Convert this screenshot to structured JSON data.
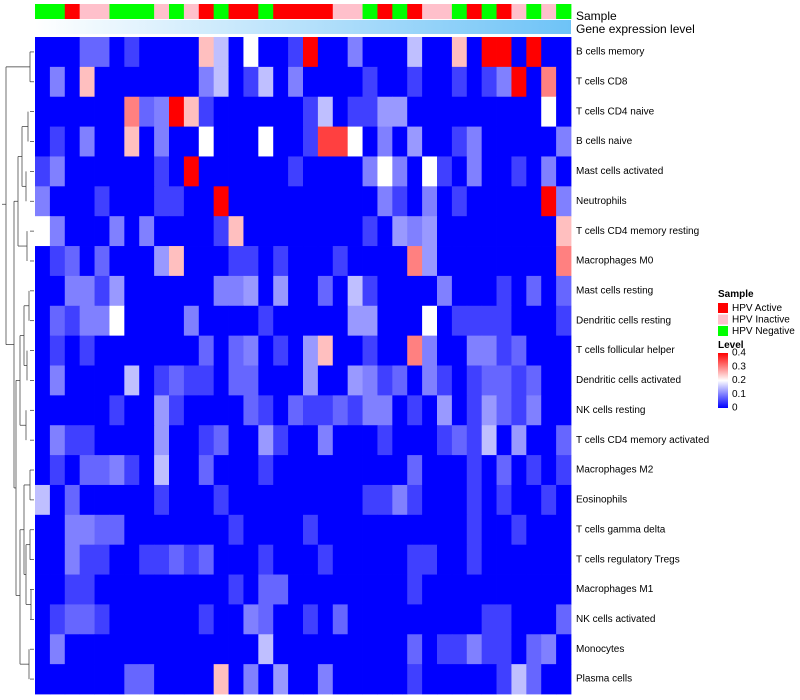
{
  "chart_data": {
    "type": "heatmap",
    "title": "",
    "annotation_tracks": [
      {
        "label": "Sample",
        "values": [
          "Negative",
          "Negative",
          "Active",
          "Inactive",
          "Inactive",
          "Negative",
          "Negative",
          "Negative",
          "Inactive",
          "Negative",
          "Inactive",
          "Active",
          "Negative",
          "Active",
          "Active",
          "Negative",
          "Active",
          "Active",
          "Active",
          "Active",
          "Inactive",
          "Inactive",
          "Negative",
          "Active",
          "Negative",
          "Active",
          "Inactive",
          "Inactive",
          "Negative",
          "Active",
          "Negative",
          "Active",
          "Inactive",
          "Negative",
          "Inactive",
          "Negative"
        ]
      },
      {
        "label": "Gene expression level",
        "values": "gradient"
      }
    ],
    "sample_legend": {
      "title": "Sample",
      "entries": [
        {
          "label": "HPV Active",
          "color": "#ff0000"
        },
        {
          "label": "HPV Inactive",
          "color": "#ffc0cb"
        },
        {
          "label": "HPV Negative",
          "color": "#00ff00"
        }
      ]
    },
    "level_legend": {
      "title": "Level",
      "range": [
        0,
        0.4
      ],
      "ticks": [
        "0.4",
        "0.3",
        "0.2",
        "0.1",
        "0"
      ],
      "colors": [
        "#0000ff",
        "#ffffff",
        "#ff0000"
      ]
    },
    "rows": [
      "B cells memory",
      "T cells CD8",
      "T cells CD4 naive",
      "B cells naive",
      "Mast cells activated",
      "Neutrophils",
      "T cells CD4 memory resting",
      "Macrophages M0",
      "Mast cells resting",
      "Dendritic cells resting",
      "T cells follicular helper",
      "Dendritic cells activated",
      "NK cells resting",
      "T cells CD4 memory activated",
      "Macrophages M2",
      "Eosinophils",
      "T cells gamma delta",
      "T cells regulatory  Tregs",
      "Macrophages M1",
      "NK cells activated",
      "Monocytes",
      "Plasma cells"
    ],
    "n_columns": 36,
    "values": [
      [
        0,
        0,
        0,
        0.08,
        0.08,
        0,
        0.05,
        0,
        0,
        0,
        0,
        0.25,
        0.15,
        0,
        0.2,
        0,
        0,
        0.05,
        0.4,
        0,
        0,
        0.1,
        0,
        0,
        0,
        0.15,
        0,
        0,
        0.25,
        0,
        0.4,
        0.4,
        0,
        0.4,
        0,
        0
      ],
      [
        0,
        0.1,
        0,
        0.25,
        0,
        0,
        0,
        0,
        0,
        0,
        0,
        0.1,
        0.15,
        0,
        0.05,
        0.15,
        0,
        0.1,
        0,
        0,
        0,
        0,
        0.05,
        0,
        0,
        0.05,
        0,
        0,
        0.05,
        0,
        0.05,
        0.1,
        0.4,
        0,
        0.3,
        0
      ],
      [
        0,
        0,
        0,
        0,
        0,
        0,
        0.3,
        0.08,
        0.1,
        0.4,
        0.25,
        0.05,
        0,
        0,
        0,
        0,
        0,
        0,
        0.05,
        0.15,
        0,
        0.05,
        0.05,
        0.12,
        0.12,
        0,
        0,
        0,
        0,
        0,
        0,
        0,
        0,
        0,
        0.2,
        0
      ],
      [
        0,
        0.05,
        0,
        0.1,
        0,
        0,
        0.25,
        0,
        0.1,
        0,
        0,
        0.2,
        0,
        0,
        0,
        0.2,
        0,
        0,
        0.05,
        0.35,
        0.35,
        0.2,
        0,
        0.1,
        0,
        0.12,
        0,
        0,
        0.05,
        0.1,
        0,
        0,
        0,
        0,
        0,
        0.1
      ],
      [
        0.05,
        0.1,
        0,
        0,
        0,
        0,
        0,
        0,
        0.05,
        0,
        0.4,
        0,
        0,
        0,
        0,
        0,
        0,
        0.05,
        0,
        0,
        0,
        0,
        0.1,
        0.2,
        0.1,
        0,
        0.2,
        0.05,
        0,
        0.1,
        0,
        0,
        0.05,
        0,
        0.1,
        0
      ],
      [
        0.1,
        0,
        0,
        0,
        0.05,
        0,
        0,
        0,
        0.05,
        0.05,
        0,
        0,
        0.4,
        0,
        0,
        0,
        0,
        0,
        0,
        0,
        0,
        0,
        0,
        0.1,
        0.05,
        0,
        0.1,
        0,
        0.05,
        0,
        0,
        0,
        0,
        0,
        0.4,
        0.1
      ],
      [
        0.2,
        0.1,
        0,
        0,
        0,
        0.1,
        0,
        0.1,
        0,
        0,
        0,
        0,
        0.05,
        0.25,
        0,
        0,
        0,
        0,
        0,
        0,
        0,
        0,
        0.05,
        0,
        0.12,
        0.1,
        0.12,
        0,
        0,
        0,
        0,
        0,
        0,
        0,
        0,
        0.25
      ],
      [
        0,
        0.05,
        0.08,
        0,
        0.08,
        0,
        0,
        0,
        0.12,
        0.25,
        0,
        0,
        0,
        0.05,
        0.05,
        0,
        0.05,
        0,
        0,
        0,
        0.05,
        0,
        0,
        0,
        0,
        0.3,
        0.12,
        0,
        0,
        0,
        0,
        0,
        0,
        0,
        0,
        0.3
      ],
      [
        0,
        0,
        0.1,
        0.1,
        0.05,
        0.12,
        0,
        0,
        0,
        0,
        0,
        0,
        0.1,
        0.1,
        0.12,
        0,
        0.12,
        0,
        0,
        0.08,
        0,
        0.15,
        0.05,
        0,
        0,
        0,
        0,
        0.1,
        0,
        0,
        0,
        0.05,
        0,
        0.08,
        0,
        0.08
      ],
      [
        0,
        0.08,
        0.05,
        0.1,
        0.1,
        0.2,
        0,
        0,
        0,
        0,
        0.1,
        0,
        0,
        0,
        0,
        0.05,
        0,
        0,
        0,
        0,
        0,
        0.12,
        0.12,
        0,
        0,
        0,
        0.2,
        0,
        0.05,
        0.05,
        0.05,
        0.05,
        0,
        0,
        0,
        0.05
      ],
      [
        0,
        0.05,
        0,
        0.05,
        0,
        0,
        0,
        0,
        0,
        0,
        0,
        0.08,
        0,
        0.08,
        0.1,
        0,
        0.05,
        0,
        0.12,
        0.25,
        0,
        0,
        0.05,
        0,
        0,
        0.3,
        0.1,
        0,
        0,
        0.1,
        0.1,
        0.05,
        0.08,
        0,
        0,
        0
      ],
      [
        0,
        0.1,
        0,
        0,
        0,
        0,
        0.15,
        0,
        0.05,
        0.08,
        0.05,
        0.05,
        0,
        0.08,
        0.08,
        0,
        0,
        0,
        0.12,
        0,
        0,
        0.12,
        0.1,
        0.05,
        0.08,
        0,
        0.1,
        0.05,
        0,
        0.05,
        0.08,
        0.08,
        0.05,
        0.08,
        0,
        0
      ],
      [
        0,
        0,
        0,
        0,
        0,
        0.05,
        0,
        0,
        0.12,
        0.05,
        0,
        0,
        0,
        0,
        0.08,
        0.05,
        0,
        0.08,
        0.05,
        0.05,
        0.08,
        0.05,
        0.1,
        0.1,
        0,
        0.05,
        0,
        0.12,
        0,
        0.05,
        0.12,
        0.08,
        0.05,
        0.1,
        0,
        0
      ],
      [
        0,
        0.1,
        0.05,
        0.05,
        0,
        0,
        0,
        0,
        0.12,
        0,
        0,
        0.05,
        0.08,
        0,
        0,
        0.12,
        0.05,
        0,
        0,
        0.1,
        0,
        0,
        0,
        0.05,
        0,
        0,
        0,
        0.05,
        0.08,
        0.05,
        0.15,
        0,
        0.12,
        0,
        0,
        0.08
      ],
      [
        0,
        0.05,
        0,
        0.08,
        0.08,
        0.1,
        0.05,
        0,
        0.15,
        0,
        0,
        0.08,
        0,
        0,
        0,
        0.05,
        0,
        0,
        0,
        0,
        0,
        0,
        0,
        0,
        0,
        0.08,
        0,
        0,
        0,
        0.05,
        0,
        0.08,
        0,
        0.05,
        0,
        0.05
      ],
      [
        0.15,
        0,
        0.08,
        0,
        0,
        0,
        0,
        0,
        0.05,
        0,
        0,
        0,
        0.05,
        0,
        0,
        0,
        0,
        0,
        0,
        0,
        0,
        0,
        0.05,
        0.05,
        0.1,
        0.05,
        0,
        0,
        0,
        0.05,
        0,
        0.05,
        0,
        0,
        0.05,
        0
      ],
      [
        0,
        0,
        0.1,
        0.1,
        0.08,
        0.08,
        0,
        0,
        0,
        0,
        0,
        0,
        0,
        0.05,
        0,
        0,
        0,
        0,
        0.05,
        0,
        0,
        0,
        0,
        0,
        0,
        0,
        0,
        0,
        0,
        0.05,
        0,
        0,
        0.05,
        0,
        0,
        0
      ],
      [
        0,
        0,
        0.1,
        0.05,
        0.05,
        0,
        0,
        0.05,
        0.05,
        0.08,
        0.05,
        0.08,
        0,
        0,
        0,
        0.05,
        0,
        0,
        0,
        0.05,
        0,
        0,
        0,
        0,
        0,
        0.05,
        0.05,
        0,
        0,
        0.05,
        0,
        0,
        0,
        0,
        0,
        0
      ],
      [
        0,
        0,
        0.05,
        0.05,
        0,
        0,
        0,
        0,
        0,
        0,
        0,
        0,
        0,
        0.05,
        0,
        0.08,
        0.08,
        0,
        0,
        0,
        0,
        0,
        0,
        0,
        0,
        0.05,
        0,
        0,
        0,
        0,
        0,
        0,
        0,
        0,
        0,
        0
      ],
      [
        0,
        0.05,
        0.08,
        0.08,
        0.05,
        0,
        0,
        0,
        0,
        0,
        0,
        0.05,
        0,
        0,
        0.1,
        0.08,
        0,
        0,
        0.05,
        0,
        0.08,
        0,
        0,
        0,
        0,
        0,
        0,
        0,
        0,
        0,
        0.05,
        0.05,
        0,
        0,
        0,
        0.08
      ],
      [
        0,
        0.1,
        0,
        0,
        0,
        0,
        0,
        0,
        0,
        0,
        0,
        0,
        0,
        0,
        0,
        0.15,
        0,
        0,
        0,
        0,
        0,
        0,
        0,
        0,
        0,
        0.08,
        0,
        0.05,
        0.05,
        0.1,
        0.05,
        0.05,
        0,
        0.08,
        0.1,
        0
      ],
      [
        0,
        0,
        0,
        0,
        0,
        0,
        0.08,
        0.08,
        0,
        0,
        0,
        0,
        0.25,
        0,
        0.1,
        0,
        0.12,
        0,
        0,
        0.1,
        0,
        0,
        0,
        0,
        0,
        0.05,
        0,
        0,
        0,
        0,
        0,
        0.05,
        0.15,
        0.08,
        0,
        0
      ]
    ]
  }
}
